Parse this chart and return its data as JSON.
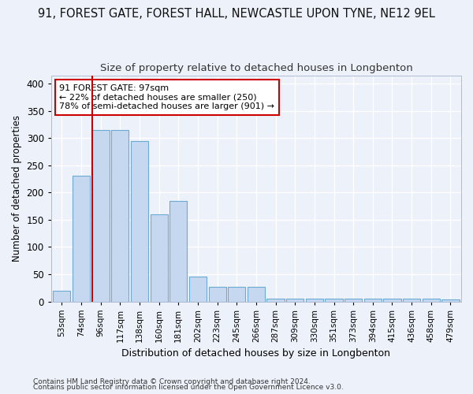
{
  "title": "91, FOREST GATE, FOREST HALL, NEWCASTLE UPON TYNE, NE12 9EL",
  "subtitle": "Size of property relative to detached houses in Longbenton",
  "xlabel": "Distribution of detached houses by size in Longbenton",
  "ylabel": "Number of detached properties",
  "categories": [
    "53sqm",
    "74sqm",
    "96sqm",
    "117sqm",
    "138sqm",
    "160sqm",
    "181sqm",
    "202sqm",
    "223sqm",
    "245sqm",
    "266sqm",
    "287sqm",
    "309sqm",
    "330sqm",
    "351sqm",
    "373sqm",
    "394sqm",
    "415sqm",
    "436sqm",
    "458sqm",
    "479sqm"
  ],
  "values": [
    19,
    230,
    315,
    315,
    295,
    160,
    184,
    46,
    27,
    27,
    27,
    5,
    5,
    5,
    5,
    5,
    5,
    5,
    5,
    5,
    3
  ],
  "bar_color": "#c5d8f0",
  "bar_edge_color": "#6aaad4",
  "vline_x": 2,
  "vline_color": "#cc0000",
  "annotation_text": "91 FOREST GATE: 97sqm\n← 22% of detached houses are smaller (250)\n78% of semi-detached houses are larger (901) →",
  "annotation_box_color": "#ffffff",
  "annotation_box_edge_color": "#cc0000",
  "ylim": [
    0,
    415
  ],
  "yticks": [
    0,
    50,
    100,
    150,
    200,
    250,
    300,
    350,
    400
  ],
  "footnote1": "Contains HM Land Registry data © Crown copyright and database right 2024.",
  "footnote2": "Contains public sector information licensed under the Open Government Licence v3.0.",
  "background_color": "#edf2fa",
  "grid_color": "#ffffff",
  "title_fontsize": 10.5,
  "subtitle_fontsize": 9.5
}
